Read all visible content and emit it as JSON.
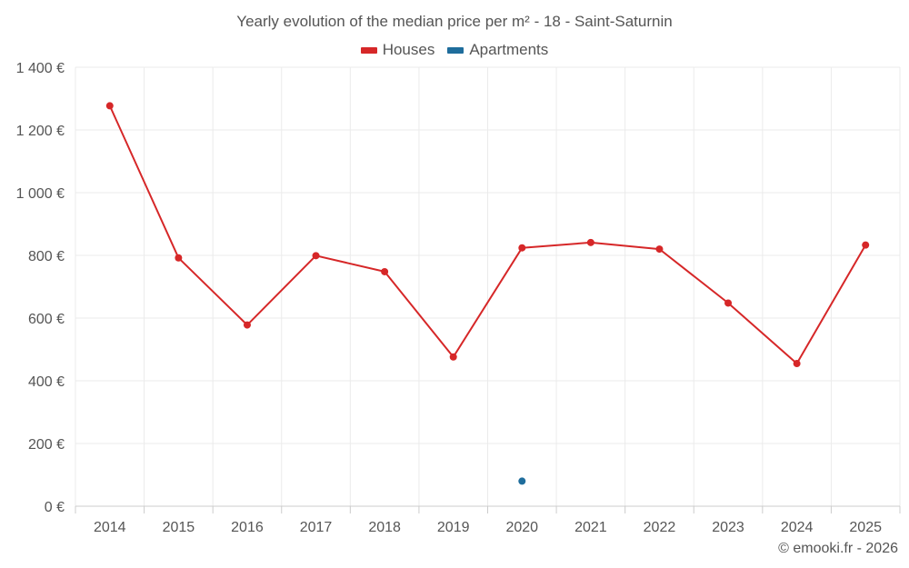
{
  "chart_data": {
    "type": "line",
    "title": "Yearly evolution of the median price per m² - 18 - Saint-Saturnin",
    "categories": [
      "2014",
      "2015",
      "2016",
      "2017",
      "2018",
      "2019",
      "2020",
      "2021",
      "2022",
      "2023",
      "2024",
      "2025"
    ],
    "series": [
      {
        "name": "Houses",
        "color": "#d62728",
        "values": [
          1277,
          792,
          578,
          799,
          748,
          476,
          824,
          841,
          820,
          648,
          455,
          833
        ]
      },
      {
        "name": "Apartments",
        "color": "#1f6d9c",
        "values": [
          null,
          null,
          null,
          null,
          null,
          null,
          80,
          null,
          null,
          null,
          null,
          null
        ]
      }
    ],
    "ylim": [
      0,
      1400
    ],
    "yticks": [
      0,
      200,
      400,
      600,
      800,
      1000,
      1200,
      1400
    ],
    "ytick_labels": [
      "0 €",
      "200 €",
      "400 €",
      "600 €",
      "800 €",
      "1 000 €",
      "1 200 €",
      "1 400 €"
    ],
    "grid": true,
    "legend_position": "top-center"
  },
  "credit": "© emooki.fr - 2026"
}
